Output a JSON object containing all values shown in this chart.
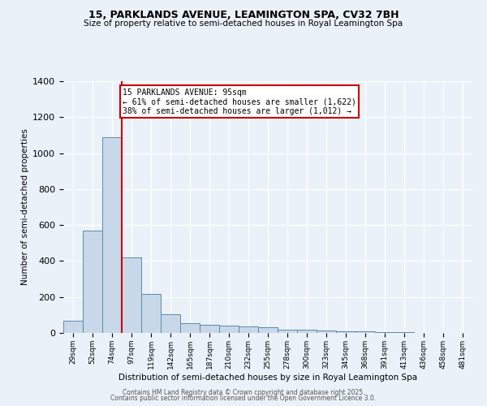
{
  "title1": "15, PARKLANDS AVENUE, LEAMINGTON SPA, CV32 7BH",
  "title2": "Size of property relative to semi-detached houses in Royal Leamington Spa",
  "xlabel": "Distribution of semi-detached houses by size in Royal Leamington Spa",
  "ylabel": "Number of semi-detached properties",
  "categories": [
    "29sqm",
    "52sqm",
    "74sqm",
    "97sqm",
    "119sqm",
    "142sqm",
    "165sqm",
    "187sqm",
    "210sqm",
    "232sqm",
    "255sqm",
    "278sqm",
    "300sqm",
    "323sqm",
    "345sqm",
    "368sqm",
    "391sqm",
    "413sqm",
    "436sqm",
    "458sqm",
    "481sqm"
  ],
  "values": [
    70,
    570,
    1090,
    420,
    215,
    105,
    55,
    45,
    40,
    35,
    30,
    20,
    20,
    15,
    10,
    8,
    5,
    3,
    2,
    1,
    1
  ],
  "bar_color": "#c8d8e8",
  "bar_edge_color": "#5a8ab0",
  "property_line_x": 2.5,
  "annotation_title": "15 PARKLANDS AVENUE: 95sqm",
  "annotation_line1": "← 61% of semi-detached houses are smaller (1,622)",
  "annotation_line2": "38% of semi-detached houses are larger (1,012) →",
  "annotation_box_color": "#ffffff",
  "annotation_box_edge": "#cc0000",
  "line_color": "#cc0000",
  "ylim": [
    0,
    1400
  ],
  "footer1": "Contains HM Land Registry data © Crown copyright and database right 2025.",
  "footer2": "Contains public sector information licensed under the Open Government Licence 3.0.",
  "bg_color": "#eaf1f8",
  "grid_color": "#ffffff"
}
